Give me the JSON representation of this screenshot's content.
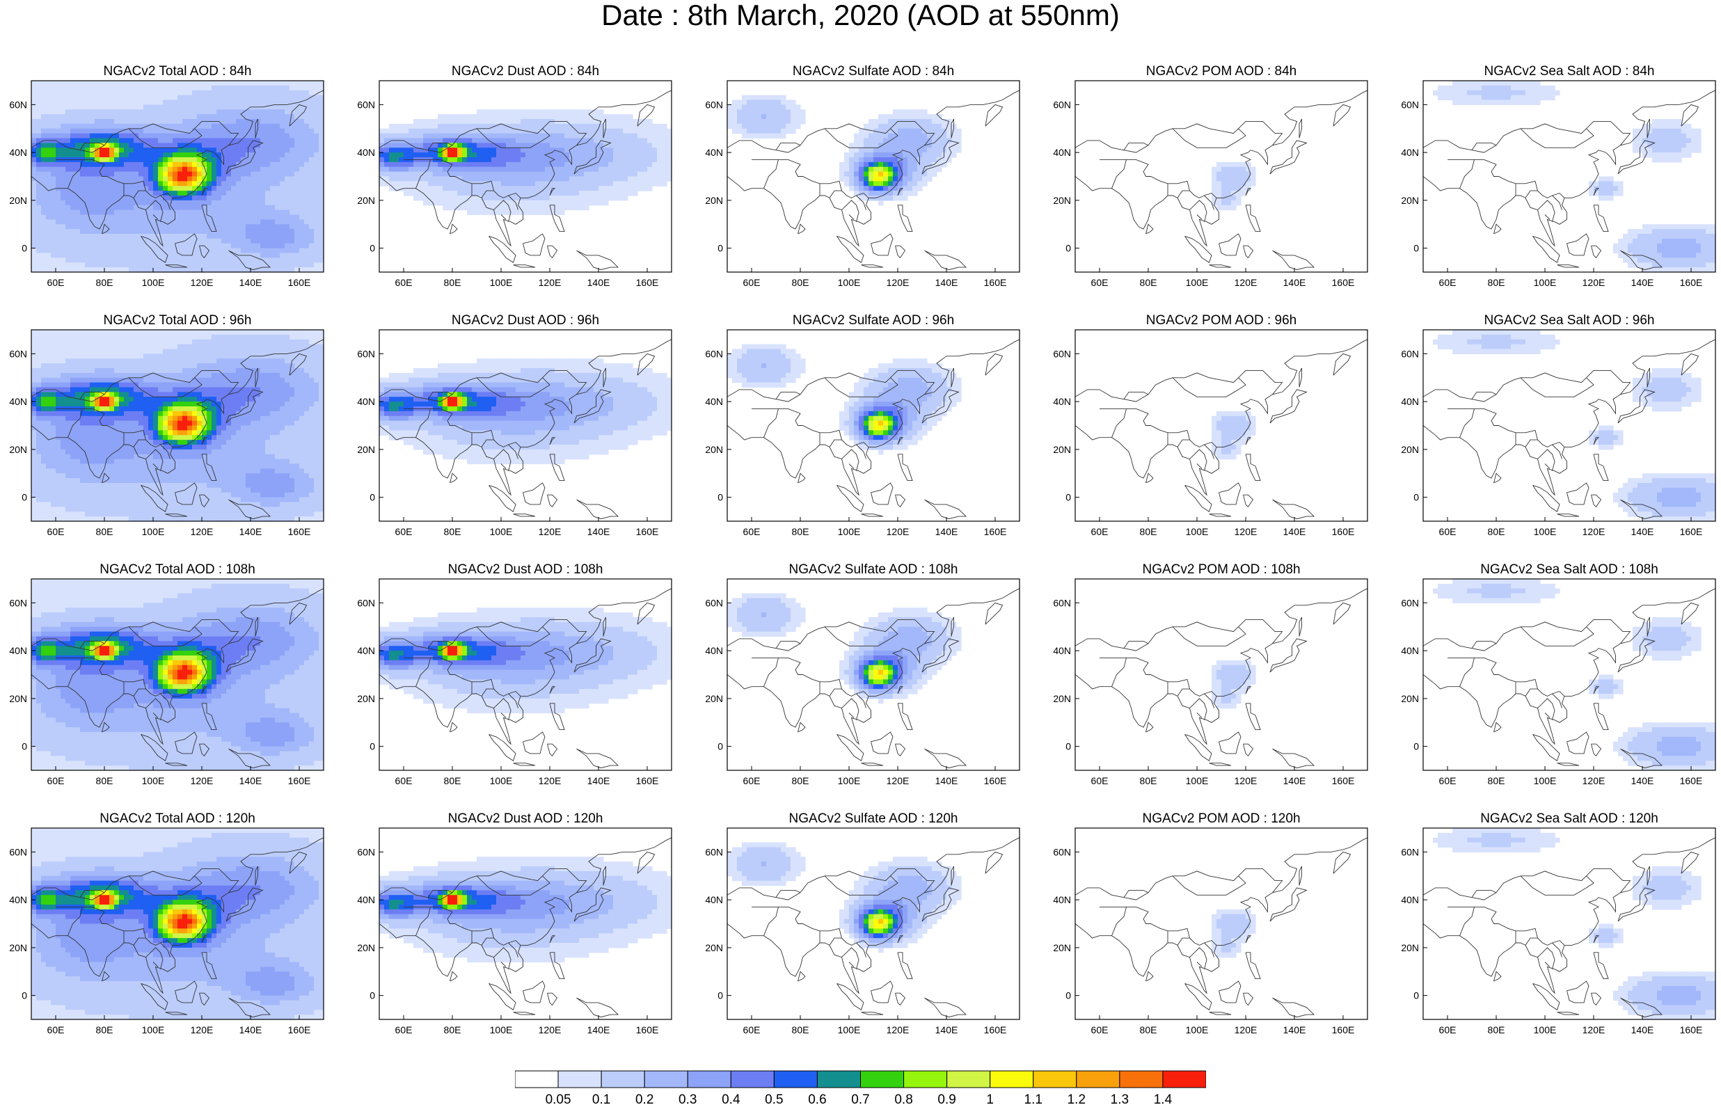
{
  "title": "Date : 8th March, 2020 (AOD at 550nm)",
  "column_titles": [
    "NGACv2 Total AOD",
    "NGACv2 Dust AOD",
    "NGACv2 Sulfate AOD",
    "NGACv2 POM AOD",
    "NGACv2 Sea Salt AOD"
  ],
  "forecast_hours": [
    "84h",
    "96h",
    "108h",
    "120h"
  ],
  "panel_titles": [
    [
      "NGACv2 Total AOD : 84h",
      "NGACv2 Dust AOD : 84h",
      "NGACv2 Sulfate AOD : 84h",
      "NGACv2 POM AOD : 84h",
      "NGACv2 Sea Salt AOD : 84h"
    ],
    [
      "NGACv2 Total AOD : 96h",
      "NGACv2 Dust AOD : 96h",
      "NGACv2 Sulfate AOD : 96h",
      "NGACv2 POM AOD : 96h",
      "NGACv2 Sea Salt AOD : 96h"
    ],
    [
      "NGACv2 Total AOD : 108h",
      "NGACv2 Dust AOD : 108h",
      "NGACv2 Sulfate AOD : 108h",
      "NGACv2 POM AOD : 108h",
      "NGACv2 Sea Salt AOD : 108h"
    ],
    [
      "NGACv2 Total AOD : 120h",
      "NGACv2 Dust AOD : 120h",
      "NGACv2 Sulfate AOD : 120h",
      "NGACv2 POM AOD : 120h",
      "NGACv2 Sea Salt  AOD : 120h"
    ]
  ],
  "map": {
    "lon_range": [
      50,
      170
    ],
    "lat_range": [
      -10,
      70
    ],
    "lon_ticks": [
      "60E",
      "80E",
      "100E",
      "120E",
      "140E",
      "160E"
    ],
    "lat_ticks": [
      "60N",
      "40N",
      "20N",
      "0"
    ]
  },
  "colorbar": {
    "levels": [
      "0.05",
      "0.1",
      "0.2",
      "0.3",
      "0.4",
      "0.5",
      "0.6",
      "0.7",
      "0.8",
      "0.9",
      "1",
      "1.1",
      "1.2",
      "1.3",
      "1.4"
    ],
    "colors": [
      "#ffffff",
      "#d8e2fd",
      "#bccdfb",
      "#a3b8fa",
      "#8da3f8",
      "#6d7ef4",
      "#1f5ff2",
      "#138f90",
      "#34d10e",
      "#96f50c",
      "#d0f545",
      "#fbfb0c",
      "#fbc70a",
      "#f8a10b",
      "#f8710b",
      "#f81f0b"
    ]
  },
  "fields": {
    "total": [
      {
        "lon": 80,
        "lat": 42,
        "sx": 15,
        "sy": 6,
        "v": 0.55
      },
      {
        "lon": 55,
        "lat": 40,
        "sx": 6,
        "sy": 4,
        "v": 0.45
      },
      {
        "lon": 112,
        "lat": 30,
        "sx": 7,
        "sy": 5,
        "v": 0.95
      },
      {
        "lon": 115,
        "lat": 35,
        "sx": 10,
        "sy": 7,
        "v": 0.35
      },
      {
        "lon": 80,
        "lat": 40,
        "sx": 3,
        "sy": 2,
        "v": 1.0
      },
      {
        "lon": 140,
        "lat": 45,
        "sx": 20,
        "sy": 10,
        "v": 0.3
      },
      {
        "lon": 110,
        "lat": 20,
        "sx": 30,
        "sy": 14,
        "v": 0.2
      },
      {
        "lon": 70,
        "lat": 25,
        "sx": 15,
        "sy": 12,
        "v": 0.2
      },
      {
        "lon": 150,
        "lat": 5,
        "sx": 12,
        "sy": 6,
        "v": 0.25
      }
    ],
    "dust": [
      {
        "lon": 80,
        "lat": 40,
        "sx": 16,
        "sy": 5,
        "v": 0.45
      },
      {
        "lon": 55,
        "lat": 38,
        "sx": 7,
        "sy": 4,
        "v": 0.45
      },
      {
        "lon": 80,
        "lat": 40,
        "sx": 3,
        "sy": 2,
        "v": 1.0
      },
      {
        "lon": 105,
        "lat": 35,
        "sx": 25,
        "sy": 10,
        "v": 0.2
      },
      {
        "lon": 130,
        "lat": 40,
        "sx": 25,
        "sy": 8,
        "v": 0.15
      }
    ],
    "sulfate": [
      {
        "lon": 112,
        "lat": 30,
        "sx": 5,
        "sy": 4,
        "v": 0.8
      },
      {
        "lon": 115,
        "lat": 32,
        "sx": 9,
        "sy": 6,
        "v": 0.35
      },
      {
        "lon": 125,
        "lat": 45,
        "sx": 12,
        "sy": 7,
        "v": 0.25
      },
      {
        "lon": 65,
        "lat": 55,
        "sx": 10,
        "sy": 6,
        "v": 0.2
      }
    ],
    "pom": [
      {
        "lon": 115,
        "lat": 30,
        "sx": 6,
        "sy": 4,
        "v": 0.2
      },
      {
        "lon": 112,
        "lat": 20,
        "sx": 4,
        "sy": 3,
        "v": 0.12
      }
    ],
    "seasalt": [
      {
        "lon": 155,
        "lat": 0,
        "sx": 15,
        "sy": 6,
        "v": 0.25
      },
      {
        "lon": 150,
        "lat": 45,
        "sx": 10,
        "sy": 6,
        "v": 0.15
      },
      {
        "lon": 125,
        "lat": 25,
        "sx": 5,
        "sy": 3,
        "v": 0.15
      },
      {
        "lon": 80,
        "lat": 65,
        "sx": 20,
        "sy": 4,
        "v": 0.12
      }
    ]
  }
}
